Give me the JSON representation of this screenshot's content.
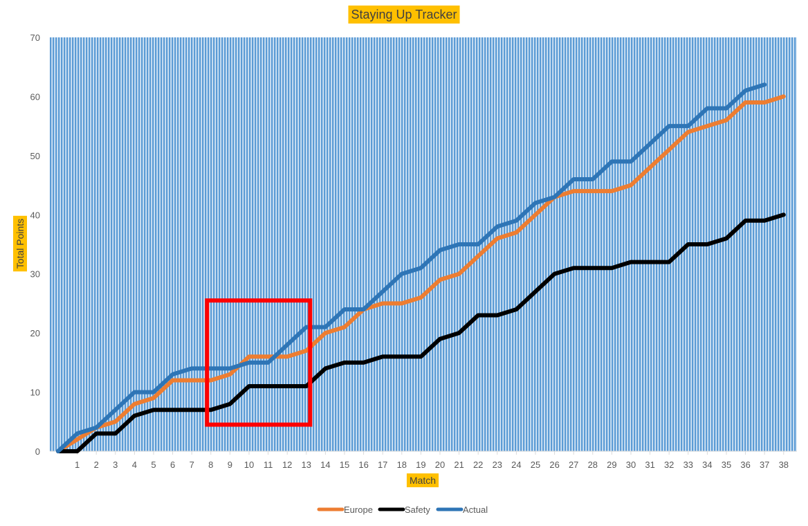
{
  "chart_data": {
    "type": "line",
    "title": "Staying Up Tracker",
    "xlabel": "Match",
    "ylabel": "Total Points",
    "x": [
      0,
      1,
      2,
      3,
      4,
      5,
      6,
      7,
      8,
      9,
      10,
      11,
      12,
      13,
      14,
      15,
      16,
      17,
      18,
      19,
      20,
      21,
      22,
      23,
      24,
      25,
      26,
      27,
      28,
      29,
      30,
      31,
      32,
      33,
      34,
      35,
      36,
      37,
      38
    ],
    "x_tick_labels": [
      "1",
      "2",
      "3",
      "4",
      "5",
      "6",
      "7",
      "8",
      "9",
      "10",
      "11",
      "12",
      "13",
      "14",
      "15",
      "16",
      "17",
      "18",
      "19",
      "20",
      "21",
      "22",
      "23",
      "24",
      "25",
      "26",
      "27",
      "28",
      "29",
      "30",
      "31",
      "32",
      "33",
      "34",
      "35",
      "36",
      "37",
      "38"
    ],
    "ylim": [
      0,
      70
    ],
    "y_ticks": [
      0,
      10,
      20,
      30,
      40,
      50,
      60,
      70
    ],
    "grid": true,
    "legend_position": "bottom",
    "series": [
      {
        "name": "Europe",
        "color": "#ED7D31",
        "values": [
          0,
          2,
          4,
          5,
          8,
          9,
          12,
          12,
          12,
          13,
          16,
          16,
          16,
          17,
          20,
          21,
          24,
          25,
          25,
          26,
          29,
          30,
          33,
          36,
          37,
          40,
          43,
          44,
          44,
          44,
          45,
          48,
          51,
          54,
          55,
          56,
          59,
          59,
          60
        ]
      },
      {
        "name": "Safety",
        "color": "#000000",
        "values": [
          0,
          0,
          3,
          3,
          6,
          7,
          7,
          7,
          7,
          8,
          11,
          11,
          11,
          11,
          14,
          15,
          15,
          16,
          16,
          16,
          19,
          20,
          23,
          23,
          24,
          27,
          30,
          31,
          31,
          31,
          32,
          32,
          32,
          35,
          35,
          36,
          39,
          39,
          40
        ]
      },
      {
        "name": "Actual",
        "color": "#2E75B6",
        "values": [
          0,
          3,
          4,
          7,
          10,
          10,
          13,
          14,
          14,
          14,
          15,
          15,
          18,
          21,
          21,
          24,
          24,
          27,
          30,
          31,
          34,
          35,
          35,
          38,
          39,
          42,
          43,
          46,
          46,
          49,
          49,
          52,
          55,
          55,
          58,
          58,
          61,
          62,
          null
        ]
      }
    ],
    "annotations": [
      {
        "type": "rectangle",
        "color": "#FF0000",
        "x_range": [
          7.8,
          13.2
        ],
        "y_range": [
          4.5,
          25.5
        ]
      }
    ],
    "colors": {
      "plot_background": "#5B9BD5",
      "highlight_label": "#FFC000",
      "highlight_box": "#FF0000"
    }
  }
}
